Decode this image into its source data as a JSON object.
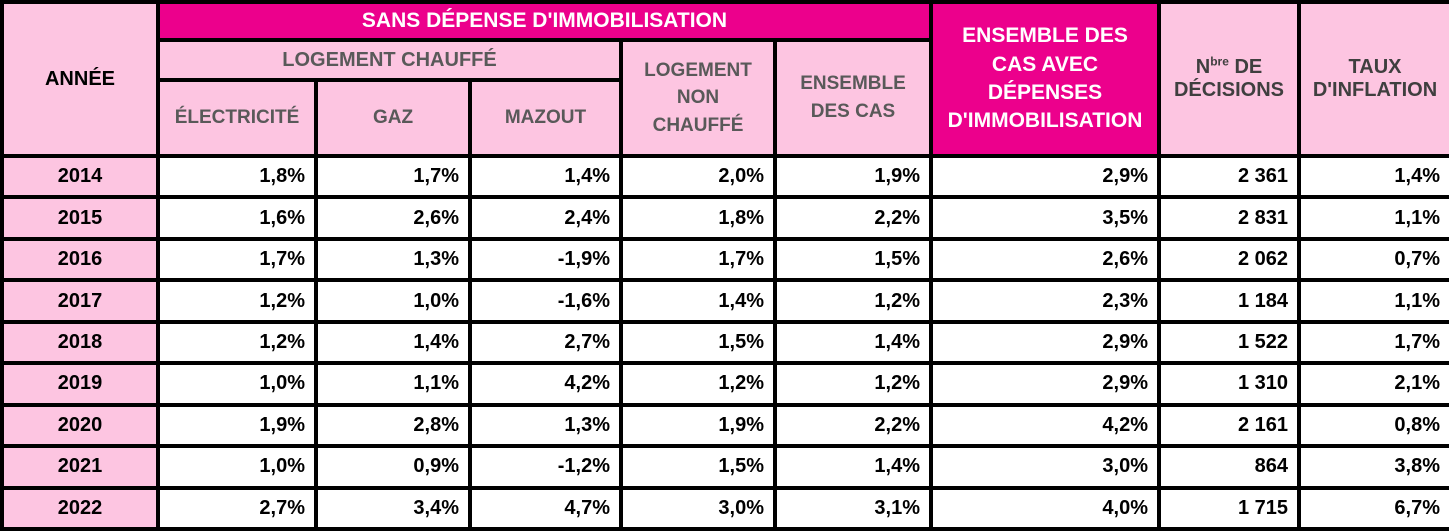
{
  "colors": {
    "magenta": "#EC008C",
    "pink": "#FDC5E1",
    "border": "#000000",
    "header_gray": "#595959",
    "header_darkgray": "#3F3F3F"
  },
  "table": {
    "header": {
      "annee": "ANNÉE",
      "sans_depense": "SANS DÉPENSE D'IMMOBILISATION",
      "logement_chauffe": "LOGEMENT CHAUFFÉ",
      "electricite": "ÉLECTRICITÉ",
      "gaz": "GAZ",
      "mazout": "MAZOUT",
      "logement_non_chauffe": "LOGEMENT NON CHAUFFÉ",
      "ensemble_des_cas": "ENSEMBLE DES CAS",
      "ensemble_avec_depenses": "ENSEMBLE DES CAS AVEC DÉPENSES D'IMMOBILISATION",
      "nbre_prefix": "N",
      "nbre_sup": "bre",
      "nbre_suffix": " DE DÉCISIONS",
      "taux_inflation": "TAUX D'INFLATION"
    }
  },
  "chart_data": {
    "type": "table",
    "title": "",
    "column_groups": [
      {
        "label": "SANS DÉPENSE D'IMMOBILISATION",
        "columns": [
          "ÉLECTRICITÉ",
          "GAZ",
          "MAZOUT",
          "LOGEMENT NON CHAUFFÉ",
          "ENSEMBLE DES CAS"
        ]
      },
      {
        "label": "LOGEMENT CHAUFFÉ",
        "columns": [
          "ÉLECTRICITÉ",
          "GAZ",
          "MAZOUT"
        ]
      }
    ],
    "columns": [
      "ANNÉE",
      "ÉLECTRICITÉ",
      "GAZ",
      "MAZOUT",
      "LOGEMENT NON CHAUFFÉ",
      "ENSEMBLE DES CAS",
      "ENSEMBLE DES CAS AVEC DÉPENSES D'IMMOBILISATION",
      "Nbre DE DÉCISIONS",
      "TAUX D'INFLATION"
    ],
    "rows": [
      [
        "2014",
        "1,8%",
        "1,7%",
        "1,4%",
        "2,0%",
        "1,9%",
        "2,9%",
        "2 361",
        "1,4%"
      ],
      [
        "2015",
        "1,6%",
        "2,6%",
        "2,4%",
        "1,8%",
        "2,2%",
        "3,5%",
        "2 831",
        "1,1%"
      ],
      [
        "2016",
        "1,7%",
        "1,3%",
        "-1,9%",
        "1,7%",
        "1,5%",
        "2,6%",
        "2 062",
        "0,7%"
      ],
      [
        "2017",
        "1,2%",
        "1,0%",
        "-1,6%",
        "1,4%",
        "1,2%",
        "2,3%",
        "1 184",
        "1,1%"
      ],
      [
        "2018",
        "1,2%",
        "1,4%",
        "2,7%",
        "1,5%",
        "1,4%",
        "2,9%",
        "1 522",
        "1,7%"
      ],
      [
        "2019",
        "1,0%",
        "1,1%",
        "4,2%",
        "1,2%",
        "1,2%",
        "2,9%",
        "1 310",
        "2,1%"
      ],
      [
        "2020",
        "1,9%",
        "2,8%",
        "1,3%",
        "1,9%",
        "2,2%",
        "4,2%",
        "2 161",
        "0,8%"
      ],
      [
        "2021",
        "1,0%",
        "0,9%",
        "-1,2%",
        "1,5%",
        "1,4%",
        "3,0%",
        "864",
        "3,8%"
      ],
      [
        "2022",
        "2,7%",
        "3,4%",
        "4,7%",
        "3,0%",
        "3,1%",
        "4,0%",
        "1 715",
        "6,7%"
      ]
    ]
  }
}
